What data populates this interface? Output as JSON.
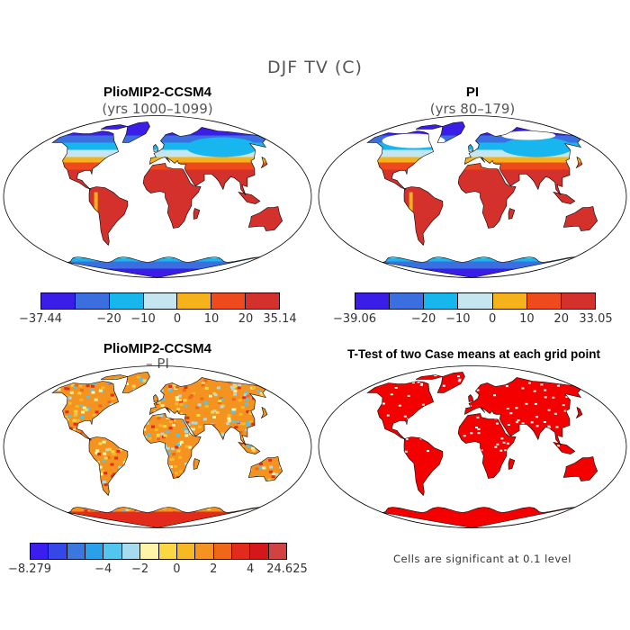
{
  "figure": {
    "title": "DJF TV (C)"
  },
  "panels": [
    {
      "id": "pliomip",
      "title": "PlioMIP2-CCSM4",
      "subtitle": "(yrs 1000–1099)",
      "type": "temperature"
    },
    {
      "id": "pi",
      "title": "PI",
      "subtitle": "(yrs 80–179)",
      "type": "temperature"
    },
    {
      "id": "diff",
      "title": "PlioMIP2-CCSM4",
      "subtitle": "– PI",
      "type": "difference"
    },
    {
      "id": "ttest",
      "title": "T-Test of two Case means at each grid point",
      "subtitle": "",
      "type": "significance"
    }
  ],
  "colorbars": {
    "pliomip": {
      "colors": [
        "#3a1ee8",
        "#3b6fe0",
        "#18b6ef",
        "#c5e6f0",
        "#f5b21b",
        "#ef4a1c",
        "#d4302c"
      ],
      "labels": [
        "−37.44",
        "−20",
        "−10",
        "0",
        "10",
        "20",
        "35.14"
      ]
    },
    "pi": {
      "colors": [
        "#3a1ee8",
        "#3b6fe0",
        "#18b6ef",
        "#c5e6f0",
        "#f5b21b",
        "#ef4a1c",
        "#d4302c"
      ],
      "labels": [
        "−39.06",
        "−20",
        "−10",
        "0",
        "10",
        "20",
        "33.05"
      ]
    },
    "diff": {
      "colors": [
        "#3b1df0",
        "#3547e8",
        "#3a78e0",
        "#2aa0ea",
        "#53c6f0",
        "#a7dcef",
        "#fff4a8",
        "#fbd843",
        "#f7b826",
        "#f49320",
        "#f0671a",
        "#e22b1a",
        "#d6171a",
        "#d24242"
      ],
      "labels": [
        "−8.279",
        "−4",
        "−2",
        "0",
        "2",
        "4",
        "24.625"
      ]
    }
  },
  "notes": {
    "significance": "Cells are significant at 0.1 level"
  },
  "colors": {
    "significant": "#f50000",
    "coastline": "#000000"
  }
}
